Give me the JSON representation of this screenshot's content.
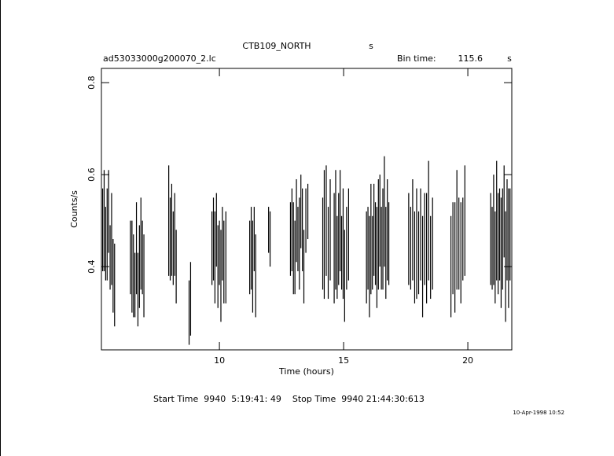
{
  "chart_data": {
    "type": "errorbar",
    "title": "CTB109_NORTH",
    "title_suffix": "s",
    "subtitle": "ad53033000g200070_2.lc",
    "bin_time_label": "Bin time:",
    "bin_time": 115.6,
    "bin_time_unit": "s",
    "xlabel": "Time (hours)",
    "ylabel": "Counts/s",
    "footer": "Start Time  9940  5:19:41: 49    Stop Time  9940 21:44:30:613",
    "timestamp": "10-Apr-1998 10:52",
    "xlim": [
      5.25,
      21.77
    ],
    "ylim": [
      0.219,
      0.831
    ],
    "xticks": [
      10,
      15,
      20
    ],
    "yticks": [
      0.4,
      0.6,
      0.8
    ],
    "color": "#000000",
    "series": [
      {
        "x": [
          5.3,
          5.36,
          5.42,
          5.48,
          5.54,
          5.6,
          5.66,
          5.72,
          5.78,
          6.42,
          6.48,
          6.54,
          6.6,
          6.66,
          6.72,
          6.78,
          6.84,
          6.9,
          6.96,
          7.96,
          8.02,
          8.08,
          8.14,
          8.2,
          8.26,
          8.78,
          8.84,
          9.7,
          9.76,
          9.82,
          9.88,
          9.94,
          10.0,
          10.06,
          10.12,
          10.18,
          10.26,
          11.22,
          11.28,
          11.34,
          11.4,
          11.46,
          11.98,
          12.04,
          12.86,
          12.92,
          12.98,
          13.04,
          13.1,
          13.16,
          13.22,
          13.28,
          13.34,
          13.4,
          13.48,
          13.56,
          14.16,
          14.22,
          14.3,
          14.38,
          14.46,
          14.62,
          14.68,
          14.74,
          14.8,
          14.86,
          14.92,
          14.98,
          15.04,
          15.12,
          15.2,
          15.92,
          15.98,
          16.04,
          16.1,
          16.16,
          16.22,
          16.28,
          16.34,
          16.4,
          16.46,
          16.52,
          16.58,
          16.64,
          16.7,
          16.76,
          16.82,
          17.62,
          17.7,
          17.78,
          17.86,
          17.94,
          18.02,
          18.1,
          18.18,
          18.26,
          18.34,
          18.42,
          18.5,
          18.58,
          19.32,
          19.4,
          19.48,
          19.56,
          19.64,
          19.72,
          19.8,
          19.88,
          20.92,
          20.98,
          21.04,
          21.1,
          21.16,
          21.22,
          21.28,
          21.34,
          21.4,
          21.46,
          21.52,
          21.58,
          21.64,
          21.7
        ],
        "values": [
          0.48,
          0.5,
          0.45,
          0.47,
          0.52,
          0.42,
          0.46,
          0.38,
          0.36,
          0.42,
          0.4,
          0.38,
          0.36,
          0.44,
          0.35,
          0.4,
          0.45,
          0.42,
          0.38,
          0.5,
          0.46,
          0.48,
          0.44,
          0.47,
          0.4,
          0.3,
          0.33,
          0.44,
          0.46,
          0.42,
          0.48,
          0.4,
          0.43,
          0.38,
          0.45,
          0.41,
          0.42,
          0.42,
          0.44,
          0.4,
          0.46,
          0.38,
          0.48,
          0.46,
          0.46,
          0.48,
          0.44,
          0.42,
          0.5,
          0.46,
          0.45,
          0.52,
          0.48,
          0.4,
          0.5,
          0.52,
          0.45,
          0.47,
          0.5,
          0.43,
          0.48,
          0.44,
          0.48,
          0.42,
          0.46,
          0.5,
          0.43,
          0.45,
          0.38,
          0.44,
          0.47,
          0.42,
          0.44,
          0.4,
          0.46,
          0.43,
          0.48,
          0.45,
          0.42,
          0.47,
          0.5,
          0.44,
          0.46,
          0.52,
          0.43,
          0.48,
          0.45,
          0.46,
          0.44,
          0.48,
          0.42,
          0.45,
          0.43,
          0.47,
          0.4,
          0.46,
          0.44,
          0.5,
          0.42,
          0.45,
          0.4,
          0.44,
          0.42,
          0.48,
          0.45,
          0.43,
          0.46,
          0.5,
          0.46,
          0.44,
          0.48,
          0.42,
          0.5,
          0.45,
          0.47,
          0.43,
          0.46,
          0.52,
          0.4,
          0.48,
          0.44,
          0.47
        ],
        "errors": [
          0.09,
          0.11,
          0.08,
          0.1,
          0.09,
          0.07,
          0.1,
          0.08,
          0.09,
          0.08,
          0.1,
          0.09,
          0.07,
          0.1,
          0.08,
          0.09,
          0.1,
          0.08,
          0.09,
          0.12,
          0.09,
          0.1,
          0.08,
          0.09,
          0.08,
          0.07,
          0.08,
          0.08,
          0.09,
          0.1,
          0.08,
          0.09,
          0.07,
          0.1,
          0.08,
          0.09,
          0.1,
          0.08,
          0.09,
          0.1,
          0.07,
          0.09,
          0.05,
          0.06,
          0.08,
          0.09,
          0.1,
          0.08,
          0.09,
          0.07,
          0.1,
          0.08,
          0.09,
          0.08,
          0.07,
          0.06,
          0.1,
          0.14,
          0.12,
          0.1,
          0.11,
          0.12,
          0.13,
          0.09,
          0.1,
          0.11,
          0.08,
          0.12,
          0.1,
          0.09,
          0.1,
          0.1,
          0.09,
          0.11,
          0.12,
          0.08,
          0.1,
          0.09,
          0.11,
          0.12,
          0.1,
          0.09,
          0.11,
          0.12,
          0.1,
          0.11,
          0.09,
          0.1,
          0.09,
          0.11,
          0.1,
          0.12,
          0.09,
          0.1,
          0.11,
          0.1,
          0.12,
          0.13,
          0.09,
          0.1,
          0.11,
          0.1,
          0.12,
          0.13,
          0.1,
          0.11,
          0.09,
          0.12,
          0.1,
          0.09,
          0.12,
          0.1,
          0.13,
          0.11,
          0.1,
          0.12,
          0.11,
          0.1,
          0.12,
          0.11,
          0.13,
          0.1
        ]
      }
    ]
  }
}
